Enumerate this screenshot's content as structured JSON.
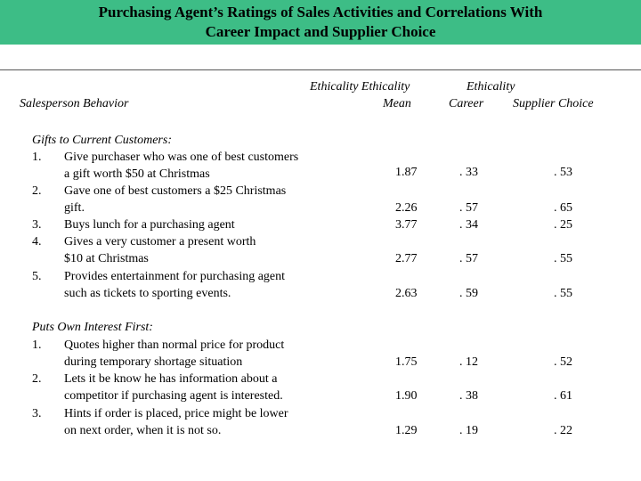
{
  "title": {
    "line1": "Purchasing Agent’s Ratings of Sales Activities and Correlations With",
    "line2": "Career Impact and Supplier Choice"
  },
  "headers": {
    "behavior": "Salesperson Behavior",
    "mean_top": "Ethicality Ethicality",
    "mean_bottom": "Mean",
    "corr_top": "Ethicality",
    "career": "Career",
    "supplier": "Supplier Choice"
  },
  "sections": [
    {
      "heading": "Gifts to Current Customers:",
      "lines": [
        {
          "num": "1.",
          "text": "Give purchaser who was one of best customers"
        },
        {
          "num": "",
          "text": "a gift worth $50 at Christmas"
        },
        {
          "num": "2.",
          "text": "Gave one of best customers a $25 Christmas"
        },
        {
          "num": "",
          "text": "gift."
        },
        {
          "num": "3.",
          "text": "Buys lunch for a purchasing agent"
        },
        {
          "num": "4.",
          "text": "Gives a very customer a present worth"
        },
        {
          "num": "",
          "text": "$10 at Christmas"
        },
        {
          "num": "5.",
          "text": "Provides entertainment for purchasing agent"
        },
        {
          "num": "",
          "text": "such as tickets to sporting events."
        }
      ],
      "values": [
        {
          "mean": "1.87",
          "career": ". 33",
          "supplier": ". 53"
        },
        {
          "mean": "2.26",
          "career": ". 57",
          "supplier": ". 65"
        },
        {
          "mean": "3.77",
          "career": ". 34",
          "supplier": ". 25"
        },
        {
          "mean": "2.77",
          "career": ". 57",
          "supplier": ". 55"
        },
        {
          "mean": "2.63",
          "career": ". 59",
          "supplier": ". 55"
        }
      ]
    },
    {
      "heading": "Puts Own Interest First:",
      "lines": [
        {
          "num": "1.",
          "text": "Quotes higher than normal price for product"
        },
        {
          "num": "",
          "text": "during temporary shortage situation"
        },
        {
          "num": "2.",
          "text": "Lets it be know he has information about a"
        },
        {
          "num": "",
          "text": "competitor if purchasing agent is interested."
        },
        {
          "num": "3.",
          "text": "Hints if order is placed, price might be lower"
        },
        {
          "num": "",
          "text": "on next order, when it is not so."
        }
      ],
      "values": [
        {
          "mean": "1.75",
          "career": ". 12",
          "supplier": ". 52"
        },
        {
          "mean": "1.90",
          "career": ". 38",
          "supplier": ". 61"
        },
        {
          "mean": "1.29",
          "career": ". 19",
          "supplier": ". 22"
        }
      ]
    }
  ]
}
